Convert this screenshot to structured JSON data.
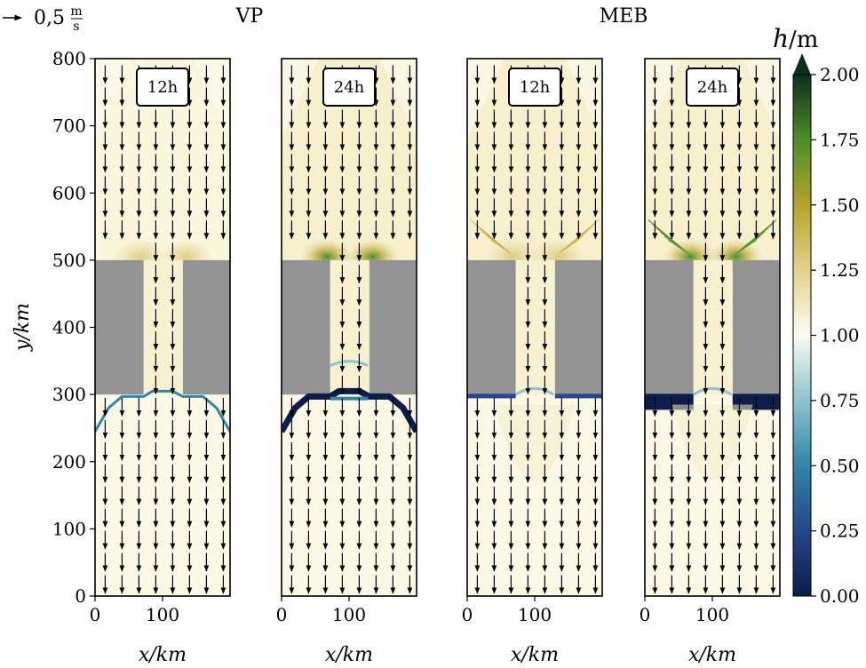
{
  "reference_arrow": {
    "label_value": "0,5",
    "unit_num": "m",
    "unit_den": "s"
  },
  "group_titles": [
    "VP",
    "MEB"
  ],
  "colorbar": {
    "label_sym": "h",
    "label_unit": "/m",
    "ticks": [
      "0.00",
      "0.25",
      "0.50",
      "0.75",
      "1.00",
      "1.25",
      "1.50",
      "1.75",
      "2.00"
    ],
    "colors": {
      "0.00": "#0b1d4a",
      "0.25": "#26468e",
      "0.50": "#2f86a6",
      "0.75": "#8ec4cf",
      "1.00": "#fbfbf2",
      "1.25": "#e3d28a",
      "1.50": "#b5a22a",
      "1.75": "#4c8e2a",
      "2.00": "#0f2f1c"
    }
  },
  "chart_data": [
    {
      "type": "heatmap",
      "panel": "VP 12h",
      "group": "VP",
      "time_label": "12h",
      "xlabel": "x/km",
      "ylabel": "y/km",
      "xlim": [
        0,
        200
      ],
      "ylim": [
        0,
        800
      ],
      "x_ticks": [
        "0",
        "100"
      ],
      "y_ticks": [
        "0",
        "100",
        "200",
        "300",
        "400",
        "500",
        "600",
        "700",
        "800"
      ],
      "obstacles_km": [
        [
          0,
          300,
          72,
          500
        ],
        [
          130,
          300,
          200,
          500
        ]
      ],
      "channel_km": [
        72,
        130
      ],
      "velocity_arrows": "downward, about 0.5 m/s",
      "h_background": 1.05,
      "front_h": 0.5
    },
    {
      "type": "heatmap",
      "panel": "VP 24h",
      "group": "VP",
      "time_label": "24h",
      "xlabel": "x/km",
      "xlim": [
        0,
        200
      ],
      "ylim": [
        0,
        800
      ],
      "x_ticks": [
        "0",
        "100"
      ],
      "obstacles_km": [
        [
          0,
          300,
          72,
          500
        ],
        [
          130,
          300,
          200,
          500
        ]
      ],
      "channel_km": [
        72,
        130
      ],
      "velocity_arrows": "downward, about 0.5 m/s",
      "h_background": 1.1,
      "front_h": 0.1
    },
    {
      "type": "heatmap",
      "panel": "MEB 12h",
      "group": "MEB",
      "time_label": "12h",
      "xlabel": "x/km",
      "xlim": [
        0,
        200
      ],
      "ylim": [
        0,
        800
      ],
      "x_ticks": [
        "0",
        "100"
      ],
      "obstacles_km": [
        [
          0,
          300,
          72,
          500
        ],
        [
          130,
          300,
          200,
          500
        ]
      ],
      "channel_km": [
        72,
        130
      ],
      "velocity_arrows": "downward, about 0.5 m/s",
      "h_background": 1.1,
      "front_h": 0.2
    },
    {
      "type": "heatmap",
      "panel": "MEB 24h",
      "group": "MEB",
      "time_label": "24h",
      "xlabel": "x/km",
      "xlim": [
        0,
        200
      ],
      "ylim": [
        0,
        800
      ],
      "x_ticks": [
        "0",
        "100"
      ],
      "obstacles_km": [
        [
          0,
          300,
          72,
          500
        ],
        [
          130,
          300,
          200,
          500
        ]
      ],
      "channel_km": [
        72,
        130
      ],
      "velocity_arrows": "downward, about 0.5 m/s",
      "h_background": 1.1,
      "front_h": 0.0
    }
  ]
}
